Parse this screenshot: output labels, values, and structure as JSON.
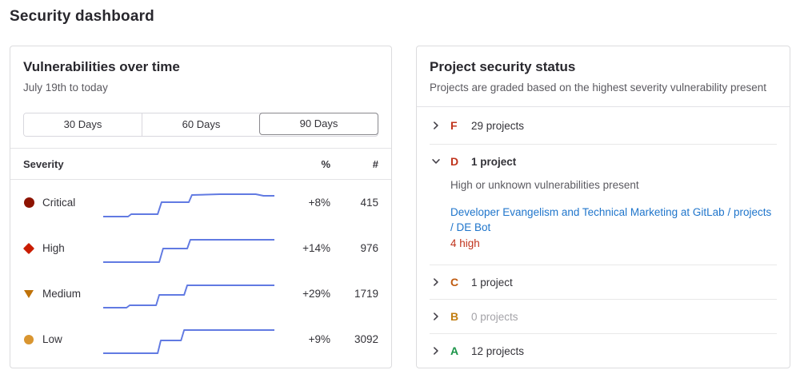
{
  "page": {
    "title": "Security dashboard"
  },
  "vulnerabilities_panel": {
    "title": "Vulnerabilities over time",
    "subtitle": "July 19th to today",
    "range_buttons": [
      {
        "label": "30 Days",
        "selected": false
      },
      {
        "label": "60 Days",
        "selected": false
      },
      {
        "label": "90 Days",
        "selected": true
      }
    ],
    "table": {
      "headers": {
        "severity": "Severity",
        "percent": "%",
        "count": "#"
      },
      "rows": [
        {
          "severity": "Critical",
          "icon": "severity-critical-icon",
          "color": "#8d1300",
          "percent": "+8%",
          "count": "415"
        },
        {
          "severity": "High",
          "icon": "severity-high-icon",
          "color": "#c91c00",
          "percent": "+14%",
          "count": "976"
        },
        {
          "severity": "Medium",
          "icon": "severity-medium-icon",
          "color": "#bf7209",
          "percent": "+29%",
          "count": "1719"
        },
        {
          "severity": "Low",
          "icon": "severity-low-icon",
          "color": "#d99530",
          "percent": "+9%",
          "count": "3092"
        }
      ]
    },
    "chart_data": {
      "type": "line",
      "line_color": "#617ae2",
      "x_range": [
        0,
        220
      ],
      "y_range": [
        0,
        50
      ],
      "series": [
        {
          "name": "Critical",
          "end_value": 415,
          "change": "+8%",
          "points": [
            [
              0,
              42
            ],
            [
              32,
              42
            ],
            [
              36,
              39
            ],
            [
              70,
              39
            ],
            [
              75,
              24
            ],
            [
              110,
              24
            ],
            [
              114,
              15
            ],
            [
              150,
              14
            ],
            [
              196,
              14
            ],
            [
              206,
              16
            ],
            [
              220,
              16
            ]
          ]
        },
        {
          "name": "High",
          "end_value": 976,
          "change": "+14%",
          "points": [
            [
              0,
              42
            ],
            [
              72,
              42
            ],
            [
              77,
              25
            ],
            [
              108,
              25
            ],
            [
              112,
              14
            ],
            [
              220,
              14
            ]
          ]
        },
        {
          "name": "Medium",
          "end_value": 1719,
          "change": "+29%",
          "points": [
            [
              0,
              42
            ],
            [
              30,
              42
            ],
            [
              34,
              39
            ],
            [
              68,
              39
            ],
            [
              72,
              26
            ],
            [
              104,
              26
            ],
            [
              108,
              14
            ],
            [
              220,
              14
            ]
          ]
        },
        {
          "name": "Low",
          "end_value": 3092,
          "change": "+9%",
          "points": [
            [
              0,
              42
            ],
            [
              70,
              42
            ],
            [
              74,
              26
            ],
            [
              100,
              26
            ],
            [
              104,
              13
            ],
            [
              220,
              13
            ]
          ]
        }
      ]
    }
  },
  "status_panel": {
    "title": "Project security status",
    "subtitle": "Projects are graded based on the highest severity vulnerability present",
    "grades": [
      {
        "letter": "F",
        "color": "#c0341d",
        "count_label": "29 projects",
        "expanded": false
      },
      {
        "letter": "D",
        "color": "#c0341d",
        "count_label": "1 project",
        "expanded": true,
        "description": "High or unknown vulnerabilities present",
        "project_link": "Developer Evangelism and Technical Marketing at GitLab / projects / DE Bot",
        "severity_summary": "4 high"
      },
      {
        "letter": "C",
        "color": "#bf5b10",
        "count_label": "1 project",
        "expanded": false
      },
      {
        "letter": "B",
        "color": "#c17d10",
        "count_label": "0 projects",
        "expanded": false,
        "muted": true
      },
      {
        "letter": "A",
        "color": "#1b9448",
        "count_label": "12 projects",
        "expanded": false
      }
    ]
  }
}
